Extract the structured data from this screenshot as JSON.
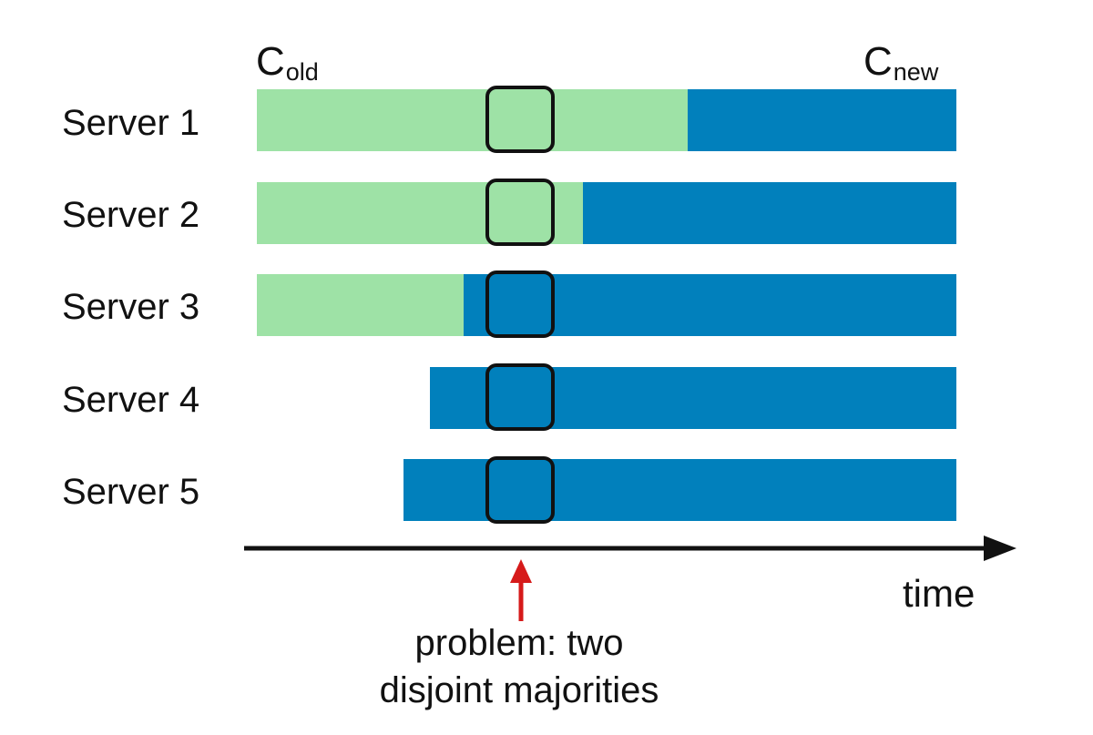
{
  "colors": {
    "old_config": "#9ee2a6",
    "new_config": "#0180bc",
    "window_outline": "#111111",
    "axis": "#111111",
    "problem_arrow": "#d61a1a"
  },
  "config_labels": {
    "old": {
      "base": "C",
      "sub": "old"
    },
    "new": {
      "base": "C",
      "sub": "new"
    }
  },
  "servers": [
    {
      "label": "Server 1",
      "segments": [
        {
          "config": "old"
        },
        {
          "config": "new"
        }
      ]
    },
    {
      "label": "Server 2",
      "segments": [
        {
          "config": "old"
        },
        {
          "config": "new"
        }
      ]
    },
    {
      "label": "Server 3",
      "segments": [
        {
          "config": "old"
        },
        {
          "config": "new"
        }
      ]
    },
    {
      "label": "Server 4",
      "segments": [
        {
          "config": "new"
        }
      ]
    },
    {
      "label": "Server 5",
      "segments": [
        {
          "config": "new"
        }
      ]
    }
  ],
  "axis": {
    "label": "time"
  },
  "annotation": {
    "line1": "problem: two",
    "line2": "disjoint majorities"
  }
}
